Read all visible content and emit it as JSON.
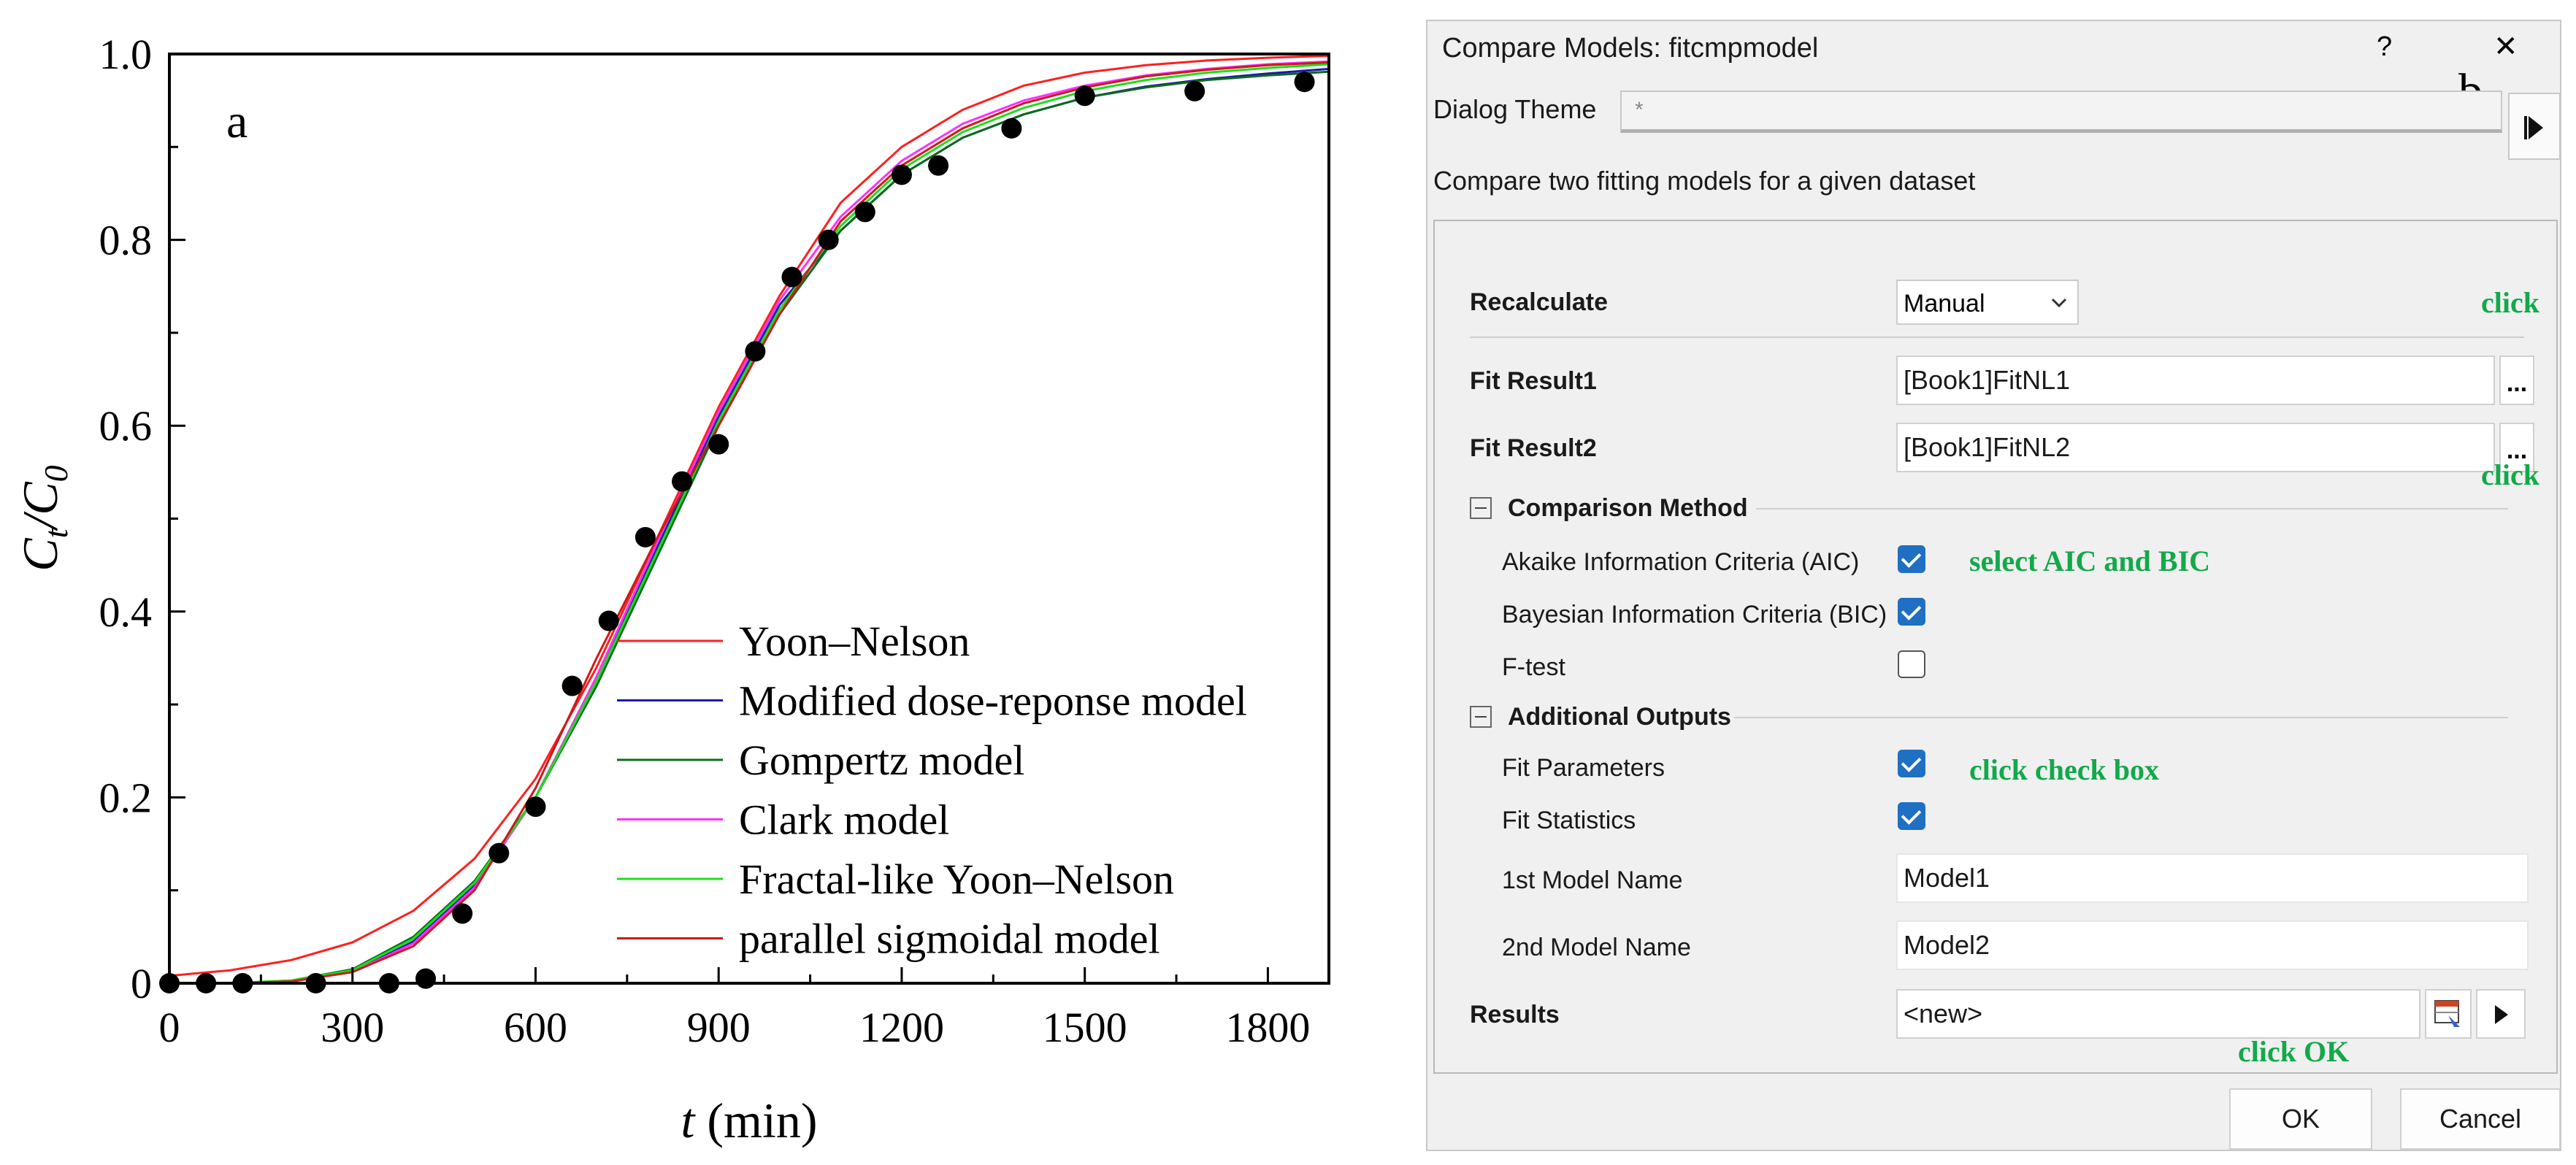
{
  "chart_data": {
    "type": "line",
    "panel_label": "a",
    "xlabel_var": "t",
    "xlabel_unit": " (min)",
    "ylabel_main": "C",
    "ylabel_sub_t": "t",
    "ylabel_slash": "/C",
    "ylabel_sub_0": "0",
    "xlim": [
      0,
      1900
    ],
    "ylim": [
      0,
      1.0
    ],
    "x_ticks": [
      "0",
      "300",
      "600",
      "900",
      "1200",
      "1500",
      "1800"
    ],
    "y_ticks": [
      "0",
      "0.2",
      "0.4",
      "0.6",
      "0.8",
      "1.0"
    ],
    "legend_position": "bottom-right",
    "data_points": {
      "x": [
        0,
        60,
        120,
        240,
        360,
        420,
        480,
        540,
        600,
        660,
        720,
        780,
        840,
        900,
        960,
        1020,
        1080,
        1140,
        1200,
        1260,
        1380,
        1500,
        1680,
        1860
      ],
      "y": [
        0.0,
        0.0,
        0.0,
        0.0,
        0.0,
        0.005,
        0.075,
        0.14,
        0.19,
        0.32,
        0.39,
        0.48,
        0.54,
        0.58,
        0.68,
        0.76,
        0.8,
        0.83,
        0.87,
        0.88,
        0.92,
        0.955,
        0.96,
        0.97
      ],
      "color": "#000000"
    },
    "series": [
      {
        "name": "Yoon–Nelson",
        "color": "#ff1f1f",
        "x": [
          0,
          100,
          200,
          300,
          400,
          500,
          600,
          700,
          800,
          900,
          1000,
          1100,
          1200,
          1300,
          1400,
          1500,
          1600,
          1700,
          1800,
          1900
        ],
        "y": [
          0.008,
          0.014,
          0.025,
          0.044,
          0.078,
          0.134,
          0.22,
          0.34,
          0.48,
          0.62,
          0.74,
          0.84,
          0.9,
          0.94,
          0.966,
          0.98,
          0.988,
          0.993,
          0.996,
          0.998
        ]
      },
      {
        "name": "Modified dose-reponse model",
        "color": "#1a1aa8",
        "x": [
          100,
          200,
          300,
          400,
          500,
          600,
          700,
          800,
          900,
          1000,
          1100,
          1200,
          1300,
          1400,
          1500,
          1600,
          1700,
          1800,
          1900
        ],
        "y": [
          0.0,
          0.002,
          0.012,
          0.045,
          0.105,
          0.2,
          0.33,
          0.47,
          0.61,
          0.73,
          0.81,
          0.87,
          0.91,
          0.935,
          0.953,
          0.965,
          0.973,
          0.979,
          0.984
        ]
      },
      {
        "name": "Gompertz model",
        "color": "#0a6b1a",
        "x": [
          100,
          200,
          300,
          400,
          500,
          600,
          700,
          800,
          900,
          1000,
          1100,
          1200,
          1300,
          1400,
          1500,
          1600,
          1700,
          1800,
          1900
        ],
        "y": [
          0.0,
          0.003,
          0.015,
          0.05,
          0.11,
          0.2,
          0.32,
          0.46,
          0.6,
          0.72,
          0.81,
          0.87,
          0.91,
          0.935,
          0.953,
          0.964,
          0.972,
          0.977,
          0.981
        ]
      },
      {
        "name": "Clark model",
        "color": "#ff30ff",
        "x": [
          100,
          200,
          300,
          400,
          500,
          600,
          700,
          800,
          900,
          1000,
          1100,
          1200,
          1300,
          1400,
          1500,
          1600,
          1700,
          1800,
          1900
        ],
        "y": [
          0.0,
          0.002,
          0.012,
          0.043,
          0.103,
          0.2,
          0.33,
          0.475,
          0.615,
          0.735,
          0.825,
          0.885,
          0.925,
          0.95,
          0.966,
          0.977,
          0.984,
          0.989,
          0.992
        ]
      },
      {
        "name": "Fractal-like Yoon–Nelson",
        "color": "#19e019",
        "x": [
          100,
          200,
          300,
          400,
          500,
          600,
          700,
          800,
          900,
          1000,
          1100,
          1200,
          1300,
          1400,
          1500,
          1600,
          1700,
          1800,
          1900
        ],
        "y": [
          0.0,
          0.003,
          0.014,
          0.048,
          0.108,
          0.2,
          0.325,
          0.465,
          0.605,
          0.725,
          0.815,
          0.876,
          0.916,
          0.942,
          0.96,
          0.972,
          0.98,
          0.985,
          0.989
        ]
      },
      {
        "name": "parallel sigmoidal model",
        "color": "#cc1a1a",
        "x": [
          100,
          200,
          300,
          400,
          500,
          600,
          700,
          800,
          900,
          1000,
          1100,
          1200,
          1300,
          1400,
          1500,
          1600,
          1700,
          1800,
          1900
        ],
        "y": [
          0.0,
          0.002,
          0.012,
          0.04,
          0.1,
          0.21,
          0.35,
          0.48,
          0.6,
          0.72,
          0.82,
          0.88,
          0.92,
          0.947,
          0.964,
          0.976,
          0.983,
          0.988,
          0.991
        ]
      }
    ]
  },
  "dialog": {
    "title": "Compare Models: fitcmpmodel",
    "help_label": "?",
    "close_label": "✕",
    "panel_label": "b",
    "theme_label": "Dialog Theme",
    "theme_value": "*",
    "description": "Compare two fitting models for a given dataset",
    "recalculate_label": "Recalculate",
    "recalculate_value": "Manual",
    "fit1_label": "Fit Result1",
    "fit1_value": "[Book1]FitNL1",
    "fit2_label": "Fit Result2",
    "fit2_value": "[Book1]FitNL2",
    "browse_label": "...",
    "comparison_header": "Comparison Method",
    "aic_label": "Akaike Information Criteria (AIC)",
    "aic_checked": true,
    "bic_label": "Bayesian Information Criteria (BIC)",
    "bic_checked": true,
    "ftest_label": "F-test",
    "ftest_checked": false,
    "outputs_header": "Additional Outputs",
    "fit_params_label": "Fit Parameters",
    "fit_params_checked": true,
    "fit_stats_label": "Fit Statistics",
    "fit_stats_checked": true,
    "model1_label": "1st Model Name",
    "model1_value": "Model1",
    "model2_label": "2nd Model Name",
    "model2_value": "Model2",
    "results_label": "Results",
    "results_value": "<new>",
    "ok_label": "OK",
    "cancel_label": "Cancel",
    "annotations": {
      "click1": "click",
      "click2": "click",
      "select": "select AIC and BIC",
      "checkbox": "click check  box",
      "ok": "click OK"
    },
    "annotation_color": "#12a94a",
    "checkbox_color": "#1f6fc3"
  }
}
